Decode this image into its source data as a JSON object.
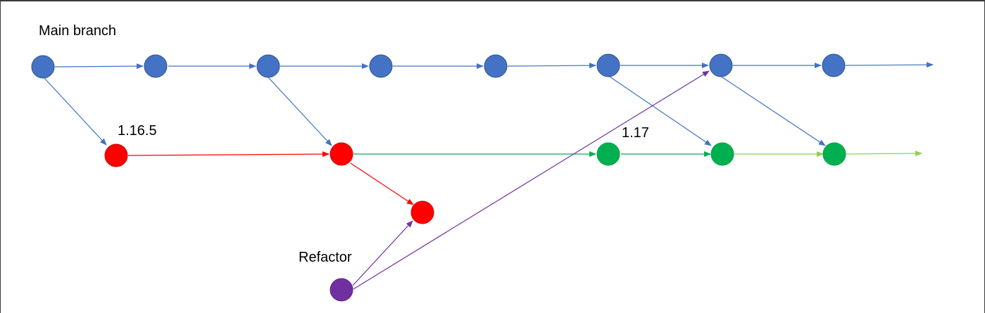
{
  "labels": {
    "main_branch": "Main branch",
    "release_1165": "1.16.5",
    "release_117": "1.17",
    "refactor": "Refactor"
  },
  "colors": {
    "main": "#4472C4",
    "release_old": "#FF0000",
    "release_new": "#00B050",
    "release_new_light": "#92D050",
    "refactor": "#7030A0"
  },
  "branches": [
    {
      "id": "main",
      "label_ref": "main_branch",
      "commit_count": 8,
      "color": "#4472C4"
    },
    {
      "id": "release-1.16.5",
      "label_ref": "release_1165",
      "commit_count": 3,
      "color": "#FF0000"
    },
    {
      "id": "release-1.17",
      "label_ref": "release_117",
      "commit_count": 3,
      "color": "#00B050"
    },
    {
      "id": "refactor",
      "label_ref": "refactor",
      "commit_count": 1,
      "color": "#7030A0"
    }
  ]
}
